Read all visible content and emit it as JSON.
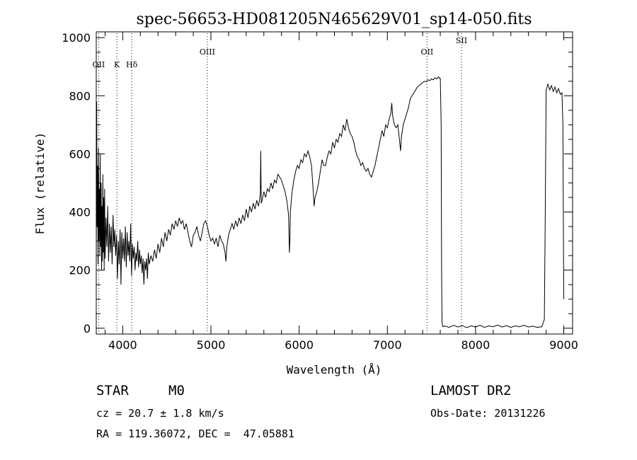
{
  "chart_data": {
    "type": "line",
    "title": "spec-56653-HD081205N465629V01_sp14-050.fits",
    "xlabel": "Wavelength (Å)",
    "ylabel": "Flux (relative)",
    "xlim": [
      3700,
      9100
    ],
    "ylim": [
      -20,
      1020
    ],
    "xticks": [
      "4000",
      "5000",
      "6000",
      "7000",
      "8000",
      "9000"
    ],
    "yticks": [
      "0",
      "200",
      "400",
      "600",
      "800",
      "1000"
    ],
    "line_markers": [
      {
        "label": "OII",
        "x": 3727
      },
      {
        "label": "K",
        "x": 3934
      },
      {
        "label": "Hδ",
        "x": 4102
      },
      {
        "label": "OIII",
        "x": 4959
      },
      {
        "label": "OII",
        "x": 7450
      },
      {
        "label": "SII",
        "x": 7840
      }
    ],
    "series": [
      {
        "points": [
          [
            3700,
            200
          ],
          [
            3705,
            780
          ],
          [
            3710,
            350
          ],
          [
            3715,
            560
          ],
          [
            3720,
            220
          ],
          [
            3725,
            620
          ],
          [
            3730,
            300
          ],
          [
            3735,
            480
          ],
          [
            3740,
            250
          ],
          [
            3745,
            600
          ],
          [
            3750,
            280
          ],
          [
            3755,
            500
          ],
          [
            3760,
            200
          ],
          [
            3765,
            420
          ],
          [
            3770,
            230
          ],
          [
            3775,
            530
          ],
          [
            3780,
            260
          ],
          [
            3785,
            450
          ],
          [
            3790,
            200
          ],
          [
            3795,
            480
          ],
          [
            3800,
            240
          ],
          [
            3810,
            380
          ],
          [
            3820,
            280
          ],
          [
            3830,
            420
          ],
          [
            3840,
            230
          ],
          [
            3850,
            360
          ],
          [
            3860,
            260
          ],
          [
            3870,
            350
          ],
          [
            3880,
            220
          ],
          [
            3890,
            390
          ],
          [
            3900,
            280
          ],
          [
            3910,
            340
          ],
          [
            3920,
            250
          ],
          [
            3930,
            320
          ],
          [
            3940,
            170
          ],
          [
            3950,
            300
          ],
          [
            3960,
            220
          ],
          [
            3970,
            340
          ],
          [
            3980,
            150
          ],
          [
            3990,
            330
          ],
          [
            4000,
            240
          ],
          [
            4010,
            310
          ],
          [
            4020,
            230
          ],
          [
            4030,
            350
          ],
          [
            4040,
            210
          ],
          [
            4050,
            330
          ],
          [
            4060,
            250
          ],
          [
            4070,
            300
          ],
          [
            4080,
            230
          ],
          [
            4090,
            360
          ],
          [
            4100,
            180
          ],
          [
            4110,
            290
          ],
          [
            4120,
            240
          ],
          [
            4130,
            280
          ],
          [
            4140,
            200
          ],
          [
            4150,
            260
          ],
          [
            4160,
            230
          ],
          [
            4170,
            300
          ],
          [
            4180,
            210
          ],
          [
            4190,
            270
          ],
          [
            4200,
            220
          ],
          [
            4210,
            250
          ],
          [
            4220,
            190
          ],
          [
            4230,
            240
          ],
          [
            4240,
            150
          ],
          [
            4250,
            230
          ],
          [
            4260,
            200
          ],
          [
            4270,
            240
          ],
          [
            4280,
            170
          ],
          [
            4290,
            260
          ],
          [
            4300,
            220
          ],
          [
            4320,
            250
          ],
          [
            4340,
            230
          ],
          [
            4360,
            270
          ],
          [
            4380,
            240
          ],
          [
            4400,
            290
          ],
          [
            4420,
            260
          ],
          [
            4440,
            310
          ],
          [
            4460,
            280
          ],
          [
            4480,
            330
          ],
          [
            4500,
            300
          ],
          [
            4520,
            340
          ],
          [
            4540,
            320
          ],
          [
            4560,
            360
          ],
          [
            4580,
            340
          ],
          [
            4600,
            370
          ],
          [
            4620,
            350
          ],
          [
            4640,
            380
          ],
          [
            4660,
            360
          ],
          [
            4680,
            370
          ],
          [
            4700,
            340
          ],
          [
            4720,
            360
          ],
          [
            4740,
            330
          ],
          [
            4760,
            300
          ],
          [
            4780,
            280
          ],
          [
            4800,
            320
          ],
          [
            4820,
            330
          ],
          [
            4840,
            350
          ],
          [
            4860,
            320
          ],
          [
            4880,
            300
          ],
          [
            4900,
            330
          ],
          [
            4920,
            360
          ],
          [
            4940,
            370
          ],
          [
            4960,
            350
          ],
          [
            4980,
            320
          ],
          [
            5000,
            300
          ],
          [
            5020,
            310
          ],
          [
            5040,
            290
          ],
          [
            5060,
            310
          ],
          [
            5080,
            280
          ],
          [
            5100,
            320
          ],
          [
            5120,
            300
          ],
          [
            5140,
            290
          ],
          [
            5160,
            260
          ],
          [
            5170,
            230
          ],
          [
            5180,
            280
          ],
          [
            5200,
            320
          ],
          [
            5220,
            340
          ],
          [
            5240,
            360
          ],
          [
            5260,
            340
          ],
          [
            5280,
            370
          ],
          [
            5300,
            350
          ],
          [
            5320,
            380
          ],
          [
            5340,
            360
          ],
          [
            5360,
            390
          ],
          [
            5380,
            370
          ],
          [
            5400,
            410
          ],
          [
            5420,
            380
          ],
          [
            5440,
            420
          ],
          [
            5460,
            400
          ],
          [
            5480,
            430
          ],
          [
            5500,
            410
          ],
          [
            5520,
            440
          ],
          [
            5540,
            420
          ],
          [
            5560,
            460
          ],
          [
            5565,
            610
          ],
          [
            5570,
            430
          ],
          [
            5580,
            440
          ],
          [
            5600,
            470
          ],
          [
            5620,
            450
          ],
          [
            5640,
            480
          ],
          [
            5660,
            470
          ],
          [
            5680,
            500
          ],
          [
            5700,
            480
          ],
          [
            5720,
            510
          ],
          [
            5740,
            500
          ],
          [
            5760,
            530
          ],
          [
            5780,
            520
          ],
          [
            5800,
            510
          ],
          [
            5820,
            490
          ],
          [
            5840,
            470
          ],
          [
            5860,
            440
          ],
          [
            5880,
            390
          ],
          [
            5890,
            260
          ],
          [
            5895,
            300
          ],
          [
            5900,
            400
          ],
          [
            5920,
            470
          ],
          [
            5940,
            510
          ],
          [
            5960,
            540
          ],
          [
            5980,
            560
          ],
          [
            6000,
            550
          ],
          [
            6020,
            580
          ],
          [
            6040,
            570
          ],
          [
            6060,
            600
          ],
          [
            6080,
            590
          ],
          [
            6100,
            610
          ],
          [
            6120,
            590
          ],
          [
            6140,
            560
          ],
          [
            6160,
            470
          ],
          [
            6170,
            420
          ],
          [
            6180,
            450
          ],
          [
            6200,
            470
          ],
          [
            6220,
            500
          ],
          [
            6240,
            540
          ],
          [
            6260,
            580
          ],
          [
            6280,
            560
          ],
          [
            6300,
            560
          ],
          [
            6320,
            590
          ],
          [
            6340,
            610
          ],
          [
            6360,
            600
          ],
          [
            6380,
            640
          ],
          [
            6400,
            620
          ],
          [
            6420,
            650
          ],
          [
            6440,
            640
          ],
          [
            6460,
            670
          ],
          [
            6480,
            660
          ],
          [
            6500,
            700
          ],
          [
            6520,
            680
          ],
          [
            6540,
            720
          ],
          [
            6560,
            690
          ],
          [
            6580,
            670
          ],
          [
            6600,
            660
          ],
          [
            6620,
            640
          ],
          [
            6640,
            610
          ],
          [
            6660,
            590
          ],
          [
            6680,
            580
          ],
          [
            6700,
            560
          ],
          [
            6720,
            570
          ],
          [
            6740,
            550
          ],
          [
            6760,
            540
          ],
          [
            6780,
            550
          ],
          [
            6800,
            530
          ],
          [
            6820,
            520
          ],
          [
            6840,
            540
          ],
          [
            6860,
            560
          ],
          [
            6880,
            590
          ],
          [
            6900,
            620
          ],
          [
            6920,
            650
          ],
          [
            6940,
            680
          ],
          [
            6960,
            660
          ],
          [
            6980,
            700
          ],
          [
            7000,
            690
          ],
          [
            7020,
            720
          ],
          [
            7040,
            740
          ],
          [
            7050,
            775
          ],
          [
            7060,
            730
          ],
          [
            7080,
            700
          ],
          [
            7100,
            690
          ],
          [
            7120,
            700
          ],
          [
            7140,
            640
          ],
          [
            7150,
            610
          ],
          [
            7160,
            660
          ],
          [
            7180,
            700
          ],
          [
            7200,
            720
          ],
          [
            7220,
            740
          ],
          [
            7240,
            760
          ],
          [
            7260,
            790
          ],
          [
            7280,
            800
          ],
          [
            7300,
            810
          ],
          [
            7320,
            820
          ],
          [
            7340,
            830
          ],
          [
            7360,
            835
          ],
          [
            7380,
            840
          ],
          [
            7400,
            845
          ],
          [
            7420,
            850
          ],
          [
            7440,
            848
          ],
          [
            7460,
            855
          ],
          [
            7480,
            852
          ],
          [
            7500,
            858
          ],
          [
            7520,
            855
          ],
          [
            7540,
            862
          ],
          [
            7560,
            858
          ],
          [
            7580,
            865
          ],
          [
            7590,
            860
          ],
          [
            7600,
            860
          ],
          [
            7610,
            700
          ],
          [
            7615,
            200
          ],
          [
            7620,
            20
          ],
          [
            7630,
            5
          ],
          [
            7650,
            8
          ],
          [
            7700,
            3
          ],
          [
            7750,
            10
          ],
          [
            7800,
            4
          ],
          [
            7850,
            9
          ],
          [
            7900,
            2
          ],
          [
            7950,
            8
          ],
          [
            8000,
            4
          ],
          [
            8050,
            10
          ],
          [
            8100,
            3
          ],
          [
            8150,
            8
          ],
          [
            8200,
            5
          ],
          [
            8250,
            11
          ],
          [
            8300,
            4
          ],
          [
            8350,
            9
          ],
          [
            8400,
            3
          ],
          [
            8450,
            8
          ],
          [
            8500,
            5
          ],
          [
            8550,
            10
          ],
          [
            8600,
            4
          ],
          [
            8650,
            7
          ],
          [
            8700,
            3
          ],
          [
            8750,
            5
          ],
          [
            8780,
            30
          ],
          [
            8790,
            400
          ],
          [
            8800,
            820
          ],
          [
            8810,
            830
          ],
          [
            8820,
            840
          ],
          [
            8840,
            820
          ],
          [
            8860,
            835
          ],
          [
            8880,
            815
          ],
          [
            8900,
            830
          ],
          [
            8920,
            810
          ],
          [
            8940,
            825
          ],
          [
            8960,
            805
          ],
          [
            8980,
            810
          ],
          [
            8990,
            700
          ],
          [
            9000,
            100
          ]
        ]
      }
    ]
  },
  "info": {
    "object_type": "STAR",
    "subclass": "M0",
    "survey": "LAMOST DR2",
    "redshift": "cz = 20.7 ± 1.8 km/s",
    "obs_date": "Obs-Date: 20131226",
    "coords": "RA = 119.36072, DEC =  47.05881"
  }
}
